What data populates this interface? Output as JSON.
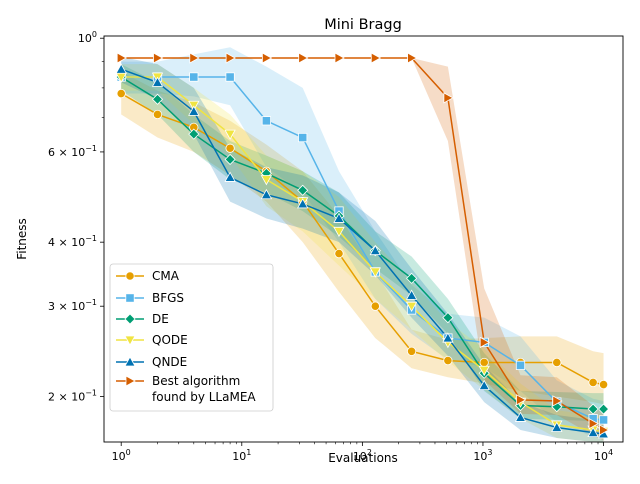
{
  "chart_data": {
    "type": "line",
    "title": "Mini Bragg",
    "xlabel": "Evaluations",
    "ylabel": "Fitness",
    "xscale": "log",
    "yscale": "log",
    "xlim": [
      0.72,
      14500
    ],
    "ylim": [
      0.163,
      1.01
    ],
    "x_ticks": [
      {
        "value": 1,
        "base": "10",
        "exp": "0"
      },
      {
        "value": 10,
        "base": "10",
        "exp": "1"
      },
      {
        "value": 100,
        "base": "10",
        "exp": "2"
      },
      {
        "value": 1000,
        "base": "10",
        "exp": "3"
      },
      {
        "value": 10000,
        "base": "10",
        "exp": "4"
      }
    ],
    "y_ticks": [
      {
        "value": 1.0,
        "base": "10",
        "exp": "0"
      },
      {
        "value": 0.6,
        "base": "6 × 10",
        "exp": "−1"
      },
      {
        "value": 0.4,
        "base": "4 × 10",
        "exp": "−1"
      },
      {
        "value": 0.3,
        "base": "3 × 10",
        "exp": "−1"
      },
      {
        "value": 0.2,
        "base": "2 × 10",
        "exp": "−1"
      }
    ],
    "grid": false,
    "legend_position": "lower-left",
    "series": [
      {
        "name": "CMA",
        "color": "#E69F00",
        "marker": "circle",
        "x": [
          1,
          2,
          4,
          8,
          16,
          32,
          64,
          128,
          256,
          512,
          1024,
          2048,
          4096,
          8192,
          10000
        ],
        "y": [
          0.78,
          0.71,
          0.67,
          0.61,
          0.55,
          0.48,
          0.38,
          0.3,
          0.245,
          0.235,
          0.233,
          0.233,
          0.233,
          0.213,
          0.211
        ],
        "lower": [
          0.71,
          0.64,
          0.6,
          0.54,
          0.48,
          0.4,
          0.32,
          0.26,
          0.227,
          0.218,
          0.212,
          0.205,
          0.2,
          0.195,
          0.193
        ],
        "upper": [
          0.86,
          0.79,
          0.75,
          0.69,
          0.62,
          0.55,
          0.45,
          0.35,
          0.27,
          0.258,
          0.26,
          0.262,
          0.262,
          0.245,
          0.243
        ]
      },
      {
        "name": "BFGS",
        "color": "#56B4E9",
        "marker": "square",
        "x": [
          1,
          2,
          4,
          8,
          16,
          32,
          64,
          128,
          256,
          512,
          1024,
          2048,
          4096,
          8192,
          10000
        ],
        "y": [
          0.84,
          0.84,
          0.84,
          0.84,
          0.69,
          0.64,
          0.46,
          0.35,
          0.295,
          0.26,
          0.255,
          0.23,
          0.195,
          0.181,
          0.18
        ],
        "lower": [
          0.78,
          0.78,
          0.77,
          0.74,
          0.56,
          0.5,
          0.4,
          0.31,
          0.265,
          0.236,
          0.228,
          0.205,
          0.178,
          0.167,
          0.166
        ],
        "upper": [
          0.9,
          0.9,
          0.93,
          0.96,
          0.88,
          0.8,
          0.55,
          0.42,
          0.33,
          0.29,
          0.285,
          0.262,
          0.215,
          0.198,
          0.196
        ]
      },
      {
        "name": "DE",
        "color": "#009E73",
        "marker": "diamond",
        "x": [
          1,
          2,
          4,
          8,
          16,
          32,
          64,
          128,
          256,
          512,
          1024,
          2048,
          4096,
          8192,
          10000
        ],
        "y": [
          0.84,
          0.76,
          0.65,
          0.58,
          0.545,
          0.505,
          0.45,
          0.385,
          0.34,
          0.285,
          0.222,
          0.192,
          0.191,
          0.189,
          0.189
        ],
        "lower": [
          0.79,
          0.71,
          0.6,
          0.53,
          0.5,
          0.46,
          0.41,
          0.355,
          0.315,
          0.265,
          0.205,
          0.181,
          0.18,
          0.179,
          0.179
        ],
        "upper": [
          0.89,
          0.82,
          0.71,
          0.63,
          0.59,
          0.55,
          0.5,
          0.42,
          0.375,
          0.31,
          0.243,
          0.205,
          0.204,
          0.203,
          0.203
        ]
      },
      {
        "name": "QODE",
        "color": "#F0E442",
        "marker": "triangle-down",
        "x": [
          1,
          2,
          4,
          8,
          16,
          32,
          64,
          128,
          256,
          512,
          1024,
          2048,
          4096,
          8192,
          10000
        ],
        "y": [
          0.84,
          0.84,
          0.74,
          0.65,
          0.53,
          0.48,
          0.42,
          0.35,
          0.3,
          0.255,
          0.225,
          0.195,
          0.176,
          0.172,
          0.171
        ],
        "lower": [
          0.79,
          0.79,
          0.68,
          0.59,
          0.47,
          0.42,
          0.36,
          0.31,
          0.27,
          0.234,
          0.206,
          0.181,
          0.166,
          0.163,
          0.162
        ],
        "upper": [
          0.89,
          0.89,
          0.8,
          0.71,
          0.59,
          0.55,
          0.49,
          0.4,
          0.335,
          0.28,
          0.248,
          0.212,
          0.188,
          0.184,
          0.183
        ]
      },
      {
        "name": "QNDE",
        "color": "#0072B2",
        "marker": "triangle-up",
        "x": [
          1,
          2,
          4,
          8,
          16,
          32,
          64,
          128,
          256,
          512,
          1024,
          2048,
          4096,
          8192,
          10000
        ],
        "y": [
          0.87,
          0.82,
          0.72,
          0.535,
          0.495,
          0.475,
          0.445,
          0.385,
          0.315,
          0.26,
          0.21,
          0.182,
          0.174,
          0.17,
          0.169
        ],
        "lower": [
          0.82,
          0.76,
          0.65,
          0.48,
          0.445,
          0.425,
          0.4,
          0.345,
          0.285,
          0.24,
          0.195,
          0.172,
          0.166,
          0.163,
          0.162
        ],
        "upper": [
          0.92,
          0.89,
          0.8,
          0.61,
          0.56,
          0.54,
          0.5,
          0.44,
          0.355,
          0.29,
          0.23,
          0.195,
          0.184,
          0.18,
          0.179
        ]
      },
      {
        "name": "Best algorithm\nfound by LLaMEA",
        "color": "#D55E00",
        "marker": "triangle-right",
        "x": [
          1,
          2,
          4,
          8,
          16,
          32,
          64,
          128,
          256,
          512,
          1024,
          2048,
          4096,
          8192,
          10000
        ],
        "y": [
          0.915,
          0.915,
          0.915,
          0.915,
          0.915,
          0.915,
          0.915,
          0.915,
          0.915,
          0.765,
          0.255,
          0.197,
          0.196,
          0.177,
          0.172
        ],
        "lower": [
          0.915,
          0.915,
          0.915,
          0.915,
          0.915,
          0.915,
          0.915,
          0.915,
          0.915,
          0.63,
          0.215,
          0.185,
          0.184,
          0.168,
          0.164
        ],
        "upper": [
          0.915,
          0.915,
          0.915,
          0.915,
          0.915,
          0.915,
          0.915,
          0.915,
          0.915,
          0.88,
          0.325,
          0.22,
          0.218,
          0.192,
          0.186
        ]
      }
    ]
  }
}
